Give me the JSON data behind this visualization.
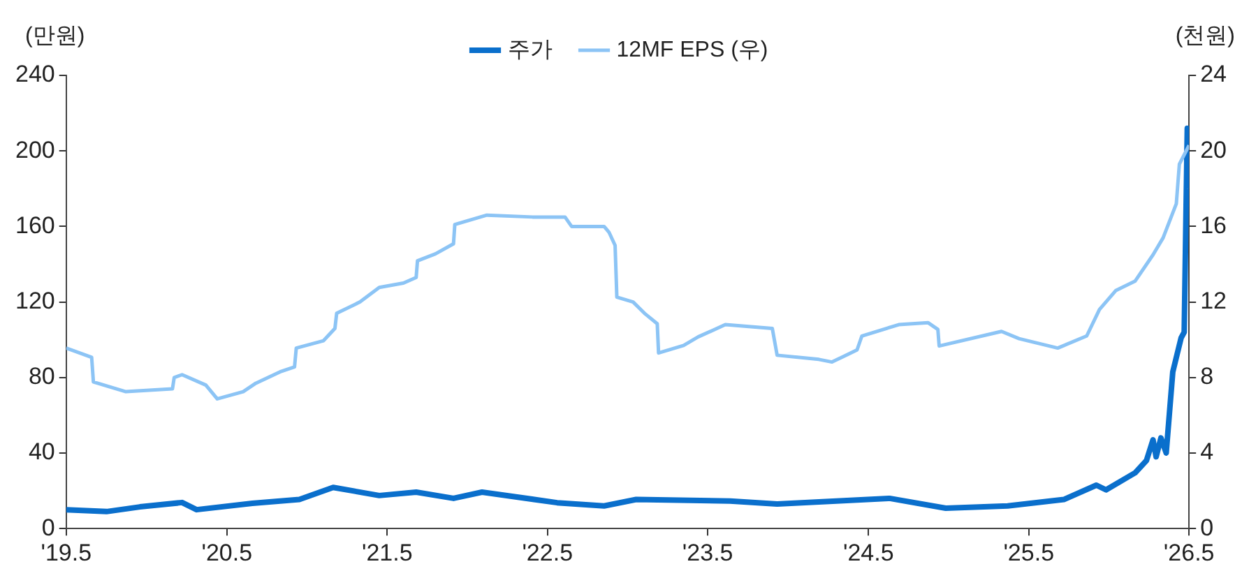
{
  "chart_data": {
    "type": "line",
    "ylabel": "(만원)",
    "y2label": "(천원)",
    "legend": "top",
    "grid": false,
    "marker": "none",
    "line_style": "solid",
    "xlim": [
      "2019-05",
      "2026-05"
    ],
    "xticks": [
      {
        "value": "2019-05",
        "label": "'19.5"
      },
      {
        "value": "2020-05",
        "label": "'20.5"
      },
      {
        "value": "2021-05",
        "label": "'21.5"
      },
      {
        "value": "2022-05",
        "label": "'22.5"
      },
      {
        "value": "2023-05",
        "label": "'23.5"
      },
      {
        "value": "2024-05",
        "label": "'24.5"
      },
      {
        "value": "2025-05",
        "label": "'25.5"
      },
      {
        "value": "2026-05",
        "label": "'26.5"
      }
    ],
    "ylim": [
      0,
      240
    ],
    "yticks": [
      0,
      40,
      80,
      120,
      160,
      200,
      240
    ],
    "y2lim": [
      0,
      24
    ],
    "y2ticks": [
      0,
      4,
      8,
      12,
      16,
      20,
      24
    ],
    "series": [
      {
        "name": "주가",
        "color": "#0a6fcc",
        "x": [
          "2019-05-01",
          "2019-08-01",
          "2019-10-16",
          "2020-01-20",
          "2020-02-22",
          "2020-06-28",
          "2020-10-13",
          "2020-12-29",
          "2021-04-13",
          "2021-07-06",
          "2021-09-29",
          "2021-12-03",
          "2022-05-23",
          "2022-09-07",
          "2022-11-19",
          "2023-06-21",
          "2023-10-06",
          "2024-06-18",
          "2024-10-24",
          "2025-03-14",
          "2025-07-20",
          "2025-10-02",
          "2025-10-24",
          "2025-12-29",
          "2026-01-24",
          "2026-02-08",
          "2026-02-15",
          "2026-02-26",
          "2026-03-10",
          "2026-03-25",
          "2026-04-13",
          "2026-04-20",
          "2026-04-27",
          "2026-05-01"
        ],
        "values": [
          10,
          9,
          11.5,
          13.8,
          10,
          13.4,
          15.4,
          21.8,
          17.5,
          19.3,
          16,
          19.3,
          13.7,
          12,
          15.4,
          14.6,
          13,
          16,
          10.8,
          12,
          15.4,
          23,
          20.5,
          29.5,
          36,
          47,
          38,
          48,
          40,
          83,
          101,
          104,
          212,
          180
        ]
      },
      {
        "name": "12MF EPS (우)",
        "color": "#8cc4f5",
        "axis": "y2",
        "x": [
          "2019-05-01",
          "2019-06-28",
          "2019-07-02",
          "2019-09-14",
          "2019-12-29",
          "2020-01-02",
          "2020-01-20",
          "2020-03-14",
          "2020-04-09",
          "2020-06-07",
          "2020-07-06",
          "2020-08-30",
          "2020-10-02",
          "2020-10-06",
          "2020-12-07",
          "2021-01-02",
          "2021-01-06",
          "2021-02-28",
          "2021-04-13",
          "2021-06-07",
          "2021-07-06",
          "2021-07-09",
          "2021-08-19",
          "2021-09-29",
          "2021-10-02",
          "2021-12-14",
          "2022-03-28",
          "2022-06-10",
          "2022-06-25",
          "2022-09-07",
          "2022-09-18",
          "2022-10-02",
          "2022-10-06",
          "2022-11-12",
          "2022-12-10",
          "2023-01-06",
          "2023-01-09",
          "2023-03-07",
          "2023-04-09",
          "2023-06-10",
          "2023-09-25",
          "2023-10-06",
          "2024-01-09",
          "2024-02-08",
          "2024-04-05",
          "2024-04-16",
          "2024-07-09",
          "2024-09-14",
          "2024-10-06",
          "2024-10-09",
          "2025-02-28",
          "2025-04-09",
          "2025-07-06",
          "2025-09-10",
          "2025-10-09",
          "2025-11-15",
          "2025-12-29",
          "2026-02-08",
          "2026-03-03",
          "2026-04-02",
          "2026-04-09",
          "2026-05-01"
        ],
        "values": [
          9.56,
          9.07,
          7.77,
          7.25,
          7.4,
          8,
          8.15,
          7.6,
          6.87,
          7.25,
          7.7,
          8.3,
          8.56,
          9.56,
          9.95,
          10.6,
          11.4,
          12,
          12.77,
          13,
          13.3,
          14.18,
          14.55,
          15.08,
          16.1,
          16.6,
          16.5,
          16.5,
          16,
          16,
          15.7,
          15,
          12.26,
          12,
          11.36,
          10.85,
          9.3,
          9.7,
          10.15,
          10.8,
          10.6,
          9.18,
          8.96,
          8.82,
          9.46,
          10.2,
          10.8,
          10.9,
          10.55,
          9.67,
          10.44,
          10.06,
          9.56,
          10.2,
          11.6,
          12.6,
          13.1,
          14.5,
          15.4,
          17.2,
          19.3,
          20.3
        ]
      }
    ]
  }
}
